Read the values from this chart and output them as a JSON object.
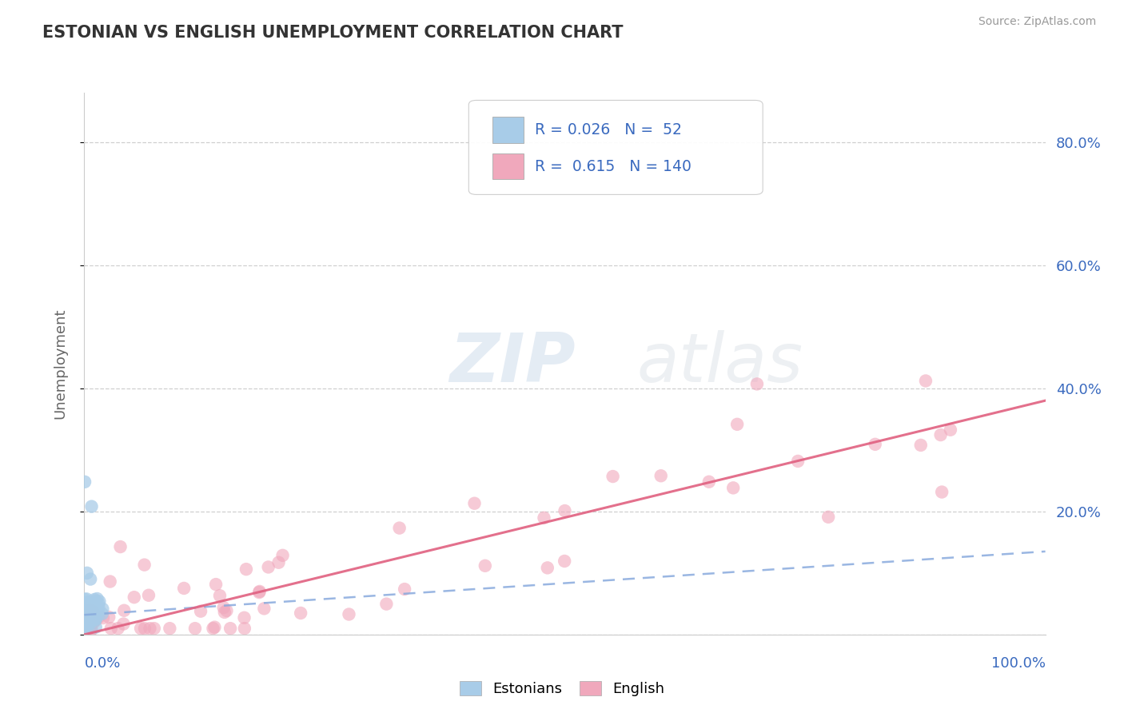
{
  "title": "ESTONIAN VS ENGLISH UNEMPLOYMENT CORRELATION CHART",
  "source": "Source: ZipAtlas.com",
  "ylabel": "Unemployment",
  "legend_text_color": "#3a6abf",
  "title_color": "#333333",
  "background_color": "#ffffff",
  "plot_bg_color": "#ffffff",
  "grid_color": "#bbbbbb",
  "watermark_text": "ZIPatlas",
  "blue_scatter_color": "#a8cce8",
  "pink_scatter_color": "#f0a8bc",
  "blue_line_color": "#88aadd",
  "pink_line_color": "#e06080",
  "blue_R": "0.026",
  "blue_N": "52",
  "pink_R": "0.615",
  "pink_N": "140",
  "xlim": [
    0.0,
    1.0
  ],
  "ylim": [
    0.0,
    0.88
  ],
  "right_yticks": [
    0.0,
    0.2,
    0.4,
    0.6,
    0.8
  ],
  "right_yticklabels": [
    "",
    "20.0%",
    "40.0%",
    "60.0%",
    "80.0%"
  ],
  "pink_line_x0": 0.0,
  "pink_line_y0": 0.0,
  "pink_line_x1": 1.0,
  "pink_line_y1": 0.38,
  "blue_line_x0": 0.0,
  "blue_line_y0": 0.032,
  "blue_line_x1": 1.0,
  "blue_line_y1": 0.135
}
